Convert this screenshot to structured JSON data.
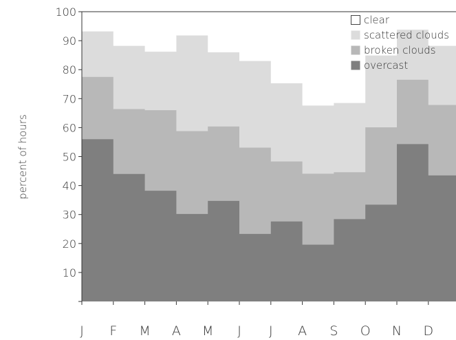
{
  "chart_data": {
    "type": "area",
    "stepped": true,
    "stacked": true,
    "categories": [
      "J",
      "F",
      "M",
      "A",
      "M",
      "J",
      "J",
      "A",
      "S",
      "O",
      "N",
      "D"
    ],
    "ylabel": "percent of hours",
    "ylim": [
      0,
      100
    ],
    "yticks": [
      0,
      10,
      20,
      30,
      40,
      50,
      60,
      70,
      80,
      90,
      100
    ],
    "ytick_labels": [
      "",
      "10",
      "20",
      "30",
      "40",
      "50",
      "60",
      "70",
      "80",
      "90",
      "100"
    ],
    "legend_position": "top-right",
    "series": [
      {
        "name": "clear",
        "color": "#ffffff",
        "cumulative": [
          100,
          100,
          100,
          100,
          100,
          100,
          100,
          100,
          100,
          100,
          100,
          100
        ]
      },
      {
        "name": "scattered clouds",
        "color": "#dcdcdc",
        "cumulative": [
          93.2,
          88.2,
          86.2,
          91.8,
          86.0,
          83.0,
          75.3,
          67.6,
          68.5,
          84.9,
          93.8,
          88.2
        ]
      },
      {
        "name": "broken clouds",
        "color": "#b8b8b8",
        "cumulative": [
          77.5,
          66.4,
          66.0,
          58.8,
          60.4,
          53.1,
          48.3,
          44.1,
          44.6,
          60.1,
          76.5,
          67.8
        ]
      },
      {
        "name": "overcast",
        "color": "#7f7f7f",
        "cumulative": [
          56.0,
          44.0,
          38.2,
          30.2,
          34.7,
          23.3,
          27.6,
          19.6,
          28.4,
          33.4,
          54.3,
          43.5
        ]
      }
    ]
  }
}
